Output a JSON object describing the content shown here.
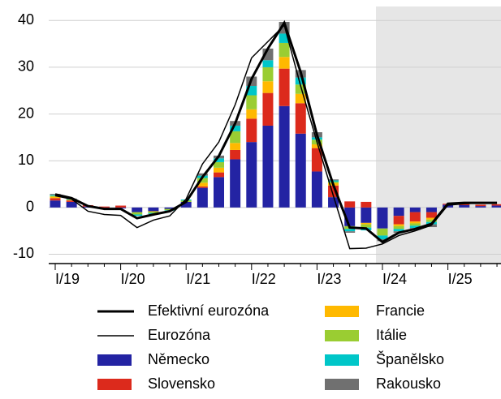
{
  "chart_data": {
    "type": "bar",
    "categories": [
      "I/19",
      null,
      null,
      null,
      "I/20",
      null,
      null,
      null,
      "I/21",
      null,
      null,
      null,
      "I/22",
      null,
      null,
      null,
      "I/23",
      null,
      null,
      null,
      "I/24",
      null,
      null,
      null,
      "I/25",
      null,
      null,
      null
    ],
    "series": [
      {
        "name": "Německo",
        "color": "#2323a3",
        "values": [
          1.5,
          1.2,
          0.2,
          -0.3,
          -0.2,
          -1.0,
          -0.8,
          -0.3,
          1.2,
          4.2,
          6.5,
          10.3,
          14,
          17.5,
          21.7,
          15.8,
          7.7,
          2.2,
          -4,
          -3.3,
          -4.5,
          -1.8,
          -1,
          -1,
          0.6,
          0.5,
          0.3,
          0.4
        ]
      },
      {
        "name": "Slovensko",
        "color": "#dc2a1c",
        "values": [
          0.5,
          0.3,
          0.3,
          0.2,
          0.4,
          0,
          0,
          0,
          0,
          0.3,
          1.0,
          2,
          5,
          7,
          8,
          6.5,
          5,
          2.5,
          1.3,
          1.2,
          0,
          -1.8,
          -2,
          -1.2,
          0.2,
          0.3,
          0.3,
          0.3
        ]
      },
      {
        "name": "Francie",
        "color": "#ffb900",
        "values": [
          0.3,
          0.1,
          0,
          0,
          0,
          0,
          -0.1,
          0,
          0,
          0.8,
          1.0,
          1.5,
          2,
          2.5,
          2.5,
          2,
          0.8,
          0.5,
          0,
          -0.3,
          0,
          -0.4,
          -0.4,
          -0.4,
          0,
          0,
          0,
          0
        ]
      },
      {
        "name": "Itálie",
        "color": "#9acd32",
        "values": [
          0.2,
          0.1,
          0,
          0,
          0,
          -0.5,
          -0.3,
          -0.3,
          0.3,
          1.0,
          1.2,
          2.5,
          3,
          3,
          3,
          2,
          1,
          0.3,
          -0.6,
          -0.7,
          -1.5,
          -0.6,
          -0.5,
          -0.5,
          0,
          0,
          0,
          0
        ]
      },
      {
        "name": "Španělsko",
        "color": "#00c6c8",
        "values": [
          0.2,
          0.1,
          0,
          0,
          0,
          -0.3,
          -0.2,
          -0.1,
          0.2,
          0.5,
          0.8,
          1.2,
          2,
          1.5,
          2,
          1.5,
          0.5,
          0.3,
          -0.5,
          -0.6,
          -0.8,
          -0.5,
          -0.5,
          -0.5,
          0,
          0,
          0,
          0
        ]
      },
      {
        "name": "Rakousko",
        "color": "#707070",
        "values": [
          0.2,
          0.1,
          0,
          0,
          0,
          0,
          0,
          0,
          0,
          0.5,
          0.6,
          1.0,
          2,
          2.5,
          2.5,
          1.6,
          1.1,
          0.2,
          -0.3,
          0,
          -0.4,
          -0.3,
          -0.4,
          -0.6,
          0,
          0,
          0,
          0
        ]
      }
    ],
    "lines": [
      {
        "name": "Efektivní eurozóna",
        "color": "#000000",
        "width": 3,
        "values": [
          2.8,
          2.0,
          0.3,
          -0.3,
          -0.3,
          -2.3,
          -1.5,
          -0.8,
          1.2,
          6.5,
          11,
          18,
          27.5,
          34,
          39.5,
          29,
          15.5,
          4.8,
          -4.3,
          -4.5,
          -7.4,
          -5.4,
          -4.6,
          -3.5,
          0.8,
          1.0,
          1.0,
          1.0
        ]
      },
      {
        "name": "Eurozóna",
        "color": "#000000",
        "width": 1.5,
        "values": [
          2.5,
          1.8,
          -0.8,
          -1.5,
          -1.7,
          -4.3,
          -2.7,
          -1.8,
          1.8,
          9.3,
          14,
          22,
          32,
          35.5,
          39,
          26,
          14,
          2.5,
          -8.8,
          -8.7,
          -7.8,
          -6,
          -5,
          -3.8,
          0.5,
          0.8,
          1.0,
          1.0
        ]
      }
    ],
    "ylim": [
      -12,
      43
    ],
    "yticks": [
      -10,
      0,
      10,
      20,
      30,
      40
    ],
    "grid": true
  }
}
